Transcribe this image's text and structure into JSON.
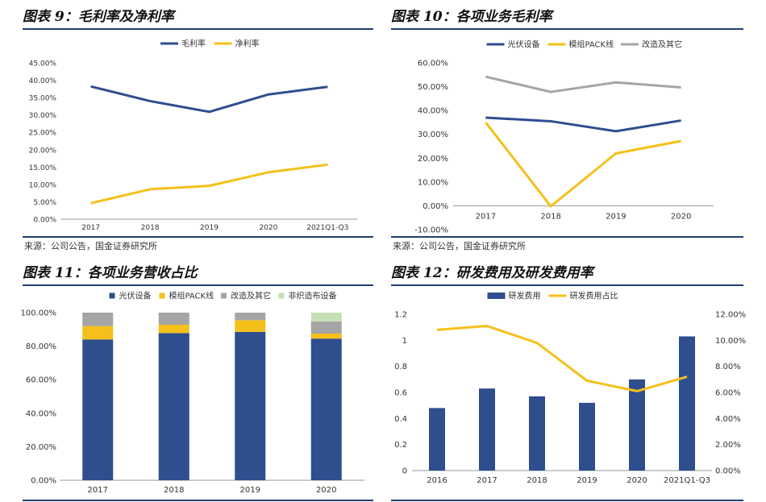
{
  "panels": [
    {
      "title": "图表 9：毛利率及净利率",
      "source": "来源：公司公告，国金证券研究所",
      "chart_data": {
        "type": "line",
        "categories": [
          "2017",
          "2018",
          "2019",
          "2020",
          "2021Q1-Q3"
        ],
        "ylim": [
          0,
          45
        ],
        "yticks": [
          "0.00%",
          "5.00%",
          "10.00%",
          "15.00%",
          "20.00%",
          "25.00%",
          "30.00%",
          "35.00%",
          "40.00%",
          "45.00%"
        ],
        "series": [
          {
            "name": "毛利率",
            "color": "#2e4e8e",
            "values": [
              38.2,
              34.0,
              30.9,
              35.9,
              38.1
            ]
          },
          {
            "name": "净利率",
            "color": "#f5c01a",
            "values": [
              4.6,
              8.6,
              9.6,
              13.5,
              15.7
            ]
          }
        ]
      }
    },
    {
      "title": "图表 10：各项业务毛利率",
      "source": "来源：公司公告，国金证券研究所",
      "chart_data": {
        "type": "line",
        "categories": [
          "2017",
          "2018",
          "2019",
          "2020"
        ],
        "ylim": [
          -10,
          60
        ],
        "yticks": [
          "-10.00%",
          "0.00%",
          "10.00%",
          "20.00%",
          "30.00%",
          "40.00%",
          "50.00%",
          "60.00%"
        ],
        "series": [
          {
            "name": "光伏设备",
            "color": "#2e4e8e",
            "values": [
              37.0,
              35.5,
              31.3,
              35.8
            ]
          },
          {
            "name": "模组PACK线",
            "color": "#f5c01a",
            "values": [
              35.0,
              -0.2,
              22.0,
              27.2
            ]
          },
          {
            "name": "改造及其它",
            "color": "#a5a5a5",
            "values": [
              54.2,
              47.8,
              51.8,
              49.7
            ]
          }
        ]
      }
    },
    {
      "title": "图表 11：各项业务营收占比",
      "chart_data": {
        "type": "bar",
        "stacked": true,
        "categories": [
          "2017",
          "2018",
          "2019",
          "2020"
        ],
        "ylim": [
          0,
          100
        ],
        "yticks": [
          "0.00%",
          "20.00%",
          "40.00%",
          "60.00%",
          "80.00%",
          "100.00%"
        ],
        "series": [
          {
            "name": "光伏设备",
            "color": "#2e4e8e",
            "values": [
              84.0,
              87.8,
              88.5,
              84.5
            ]
          },
          {
            "name": "模组PACK线",
            "color": "#f5c01a",
            "values": [
              8.0,
              5.0,
              7.0,
              3.0
            ]
          },
          {
            "name": "改造及其它",
            "color": "#a5a5a5",
            "values": [
              8.0,
              7.2,
              4.5,
              7.3
            ]
          },
          {
            "name": "非织造布设备",
            "color": "#c5e0b4",
            "values": [
              0,
              0,
              0,
              5.2
            ]
          }
        ]
      }
    },
    {
      "title": "图表 12：研发费用及研发费用率",
      "chart_data": {
        "type": "bar",
        "categories": [
          "2016",
          "2017",
          "2018",
          "2019",
          "2020",
          "2021Q1-Q3"
        ],
        "ylim": [
          0,
          1.2
        ],
        "yticks": [
          "0",
          "0.2",
          "0.4",
          "0.6",
          "0.8",
          "1",
          "1.2"
        ],
        "y2lim": [
          0,
          12
        ],
        "y2ticks": [
          "0.00%",
          "2.00%",
          "4.00%",
          "6.00%",
          "8.00%",
          "10.00%",
          "12.00%"
        ],
        "series": [
          {
            "name": "研发费用",
            "color": "#2e4e8e",
            "kind": "bar",
            "axis": "left",
            "values": [
              0.48,
              0.63,
              0.57,
              0.52,
              0.7,
              1.03
            ]
          },
          {
            "name": "研发费用占比",
            "color": "#f5c01a",
            "kind": "line",
            "axis": "right",
            "values": [
              10.8,
              11.1,
              9.8,
              6.9,
              6.1,
              7.2
            ]
          }
        ]
      }
    }
  ]
}
